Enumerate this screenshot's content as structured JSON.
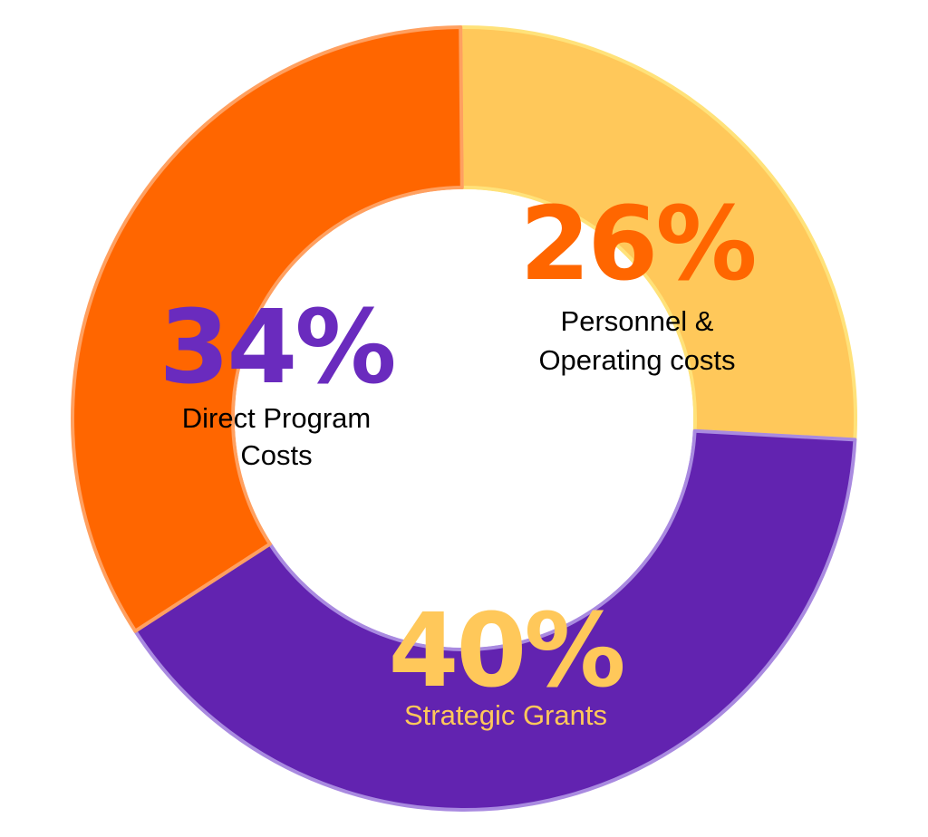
{
  "chart_data": {
    "type": "pie",
    "variant": "donut",
    "slices": [
      {
        "label_lines": [
          "Personnel &",
          "Operating costs"
        ],
        "percent_text": "26%",
        "value": 26,
        "color": "#FFC85A",
        "edge_color": "#FFE27A",
        "percent_color": "#FF6600",
        "label_color": "#000000"
      },
      {
        "label_lines": [
          "Strategic Grants"
        ],
        "percent_text": "40%",
        "value": 40,
        "color": "#6223B0",
        "edge_color": "#A98AE0",
        "percent_color": "#FFC85A",
        "label_color": "#FFC85A"
      },
      {
        "label_lines": [
          "Direct Program",
          "Costs"
        ],
        "percent_text": "34%",
        "value": 34,
        "color": "#FF6600",
        "edge_color": "#FFA060",
        "percent_color": "#6A2BBE",
        "label_color": "#000000"
      }
    ]
  }
}
